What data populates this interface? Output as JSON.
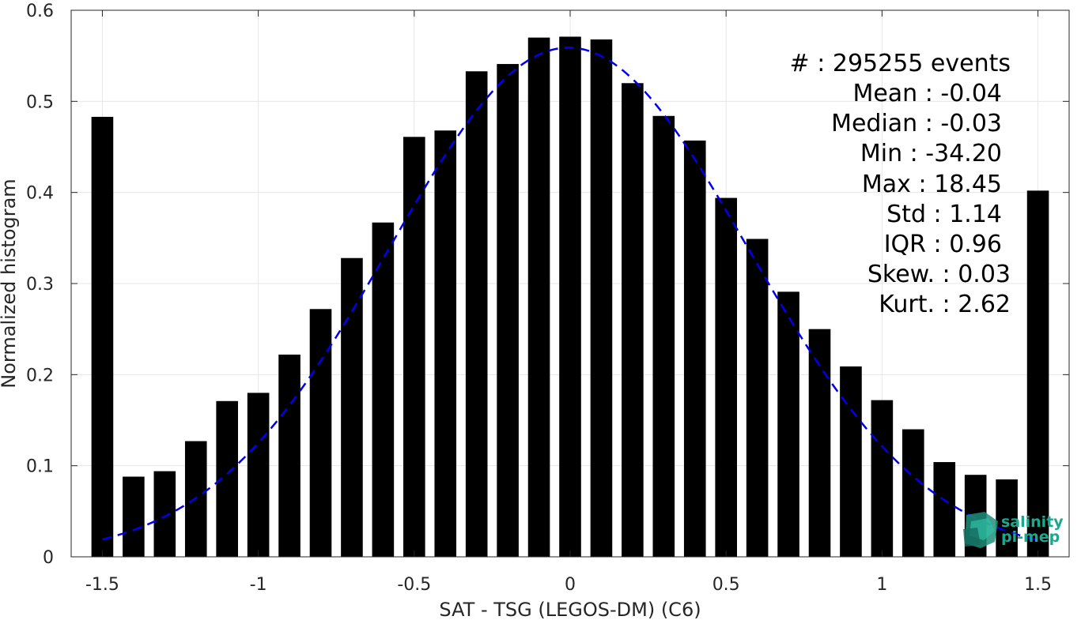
{
  "chart_data": {
    "type": "bar",
    "xlabel": "SAT - TSG (LEGOS-DM) (C6)",
    "ylabel": "Normalized histogram",
    "xlim": [
      -1.6,
      1.6
    ],
    "ylim": [
      0,
      0.6
    ],
    "xticks": [
      -1.5,
      -1,
      -0.5,
      0,
      0.5,
      1,
      1.5
    ],
    "xtick_labels": [
      "-1.5",
      "-1",
      "-0.5",
      "0",
      "0.5",
      "1",
      "1.5"
    ],
    "yticks": [
      0,
      0.1,
      0.2,
      0.3,
      0.4,
      0.5,
      0.6
    ],
    "ytick_labels": [
      "0",
      "0.1",
      "0.2",
      "0.3",
      "0.4",
      "0.5",
      "0.6"
    ],
    "grid": true,
    "bar_color": "#000000",
    "bar_width": 0.07,
    "bins": [
      -1.5,
      -1.4,
      -1.3,
      -1.2,
      -1.1,
      -1.0,
      -0.9,
      -0.8,
      -0.7,
      -0.6,
      -0.5,
      -0.4,
      -0.3,
      -0.2,
      -0.1,
      0.0,
      0.1,
      0.2,
      0.3,
      0.4,
      0.5,
      0.6,
      0.7,
      0.8,
      0.9,
      1.0,
      1.1,
      1.2,
      1.3,
      1.4,
      1.5
    ],
    "values": [
      0.483,
      0.088,
      0.094,
      0.127,
      0.171,
      0.18,
      0.222,
      0.272,
      0.328,
      0.367,
      0.461,
      0.468,
      0.533,
      0.541,
      0.57,
      0.571,
      0.568,
      0.52,
      0.484,
      0.457,
      0.394,
      0.349,
      0.291,
      0.25,
      0.209,
      0.172,
      0.14,
      0.104,
      0.09,
      0.085,
      0.402
    ],
    "fit_curve": {
      "style": "dashed",
      "color": "#0000ee",
      "x_range": [
        -1.5,
        1.5
      ],
      "mean": -0.005,
      "sigma": 0.575,
      "peak": 0.559
    },
    "stats": [
      {
        "label": "#  : 295255 events"
      },
      {
        "label": "Mean : -0.04"
      },
      {
        "label": "Median : -0.03"
      },
      {
        "label": "Min : -34.20"
      },
      {
        "label": "Max : 18.45"
      },
      {
        "label": "Std : 1.14"
      },
      {
        "label": "IQR : 0.96"
      },
      {
        "label": "Skew. : 0.03"
      },
      {
        "label": "Kurt. : 2.62"
      }
    ]
  },
  "logo": {
    "line1": "salinity",
    "line2": "pi-mep",
    "color": "#1aa88e"
  }
}
